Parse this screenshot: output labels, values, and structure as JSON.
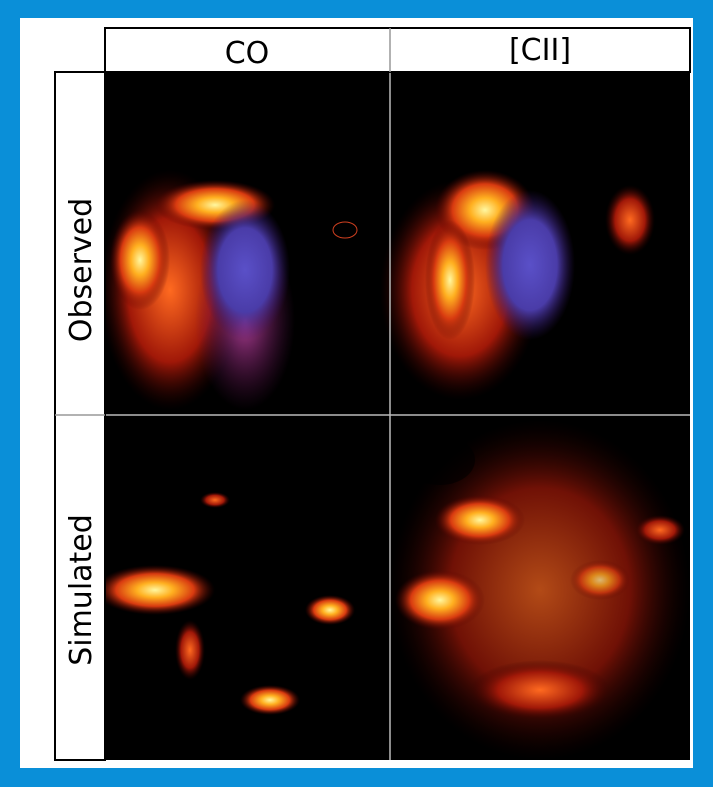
{
  "columns": [
    "CO",
    "[CII]"
  ],
  "rows": [
    "Observed",
    "Simulated"
  ]
}
